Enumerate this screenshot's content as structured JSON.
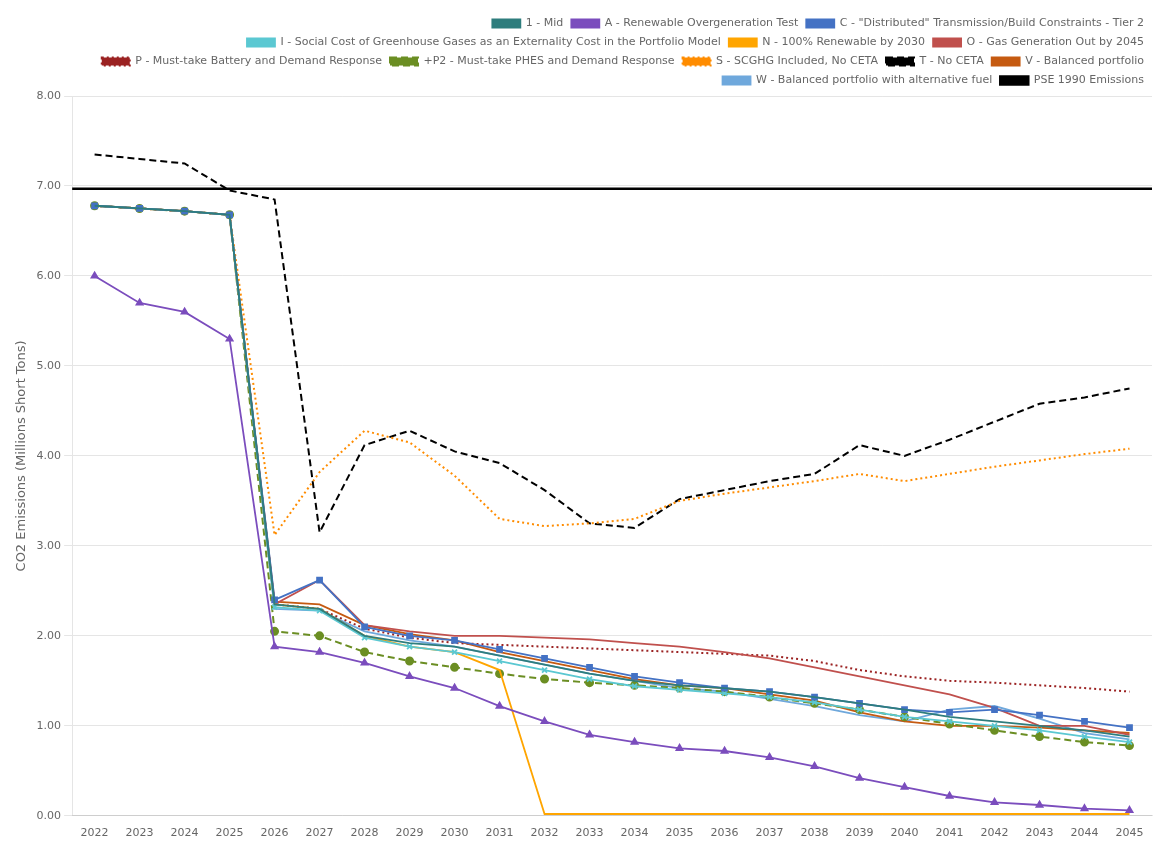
{
  "chart_data": {
    "type": "line",
    "y_label": "CO2 Emissions (Millions Short Tons)",
    "x": [
      2022,
      2023,
      2024,
      2025,
      2026,
      2027,
      2028,
      2029,
      2030,
      2031,
      2032,
      2033,
      2034,
      2035,
      2036,
      2037,
      2038,
      2039,
      2040,
      2041,
      2042,
      2043,
      2044,
      2045
    ],
    "xlim": [
      2021.5,
      2045.5
    ],
    "xticks": [
      2022,
      2023,
      2024,
      2025,
      2026,
      2027,
      2028,
      2029,
      2030,
      2031,
      2032,
      2033,
      2034,
      2035,
      2036,
      2037,
      2038,
      2039,
      2040,
      2041,
      2042,
      2043,
      2044,
      2045
    ],
    "ylim": [
      0.0,
      8.0
    ],
    "yticks": [
      {
        "value": 0,
        "label": "0.00"
      },
      {
        "value": 1,
        "label": "1.00"
      },
      {
        "value": 2,
        "label": "2.00"
      },
      {
        "value": 3,
        "label": "3.00"
      },
      {
        "value": 4,
        "label": "4.00"
      },
      {
        "value": 5,
        "label": "5.00"
      },
      {
        "value": 6,
        "label": "6.00"
      },
      {
        "value": 7,
        "label": "7.00"
      },
      {
        "value": 8,
        "label": "8.00"
      }
    ],
    "grid": "y",
    "legend": "upper right",
    "series": [
      {
        "name": "1 - Mid",
        "color": "#2e7d7d",
        "line_style": "solid",
        "marker": "none",
        "values": [
          6.78,
          6.75,
          6.72,
          6.68,
          2.35,
          2.3,
          2.0,
          1.92,
          1.88,
          1.78,
          1.68,
          1.58,
          1.5,
          1.45,
          1.42,
          1.38,
          1.32,
          1.25,
          1.18,
          1.1,
          1.05,
          1.0,
          0.95,
          0.88
        ]
      },
      {
        "name": "A - Renewable Overgeneration Test",
        "color": "#7b4dbd",
        "line_style": "solid",
        "marker": "triangle",
        "values": [
          6.0,
          5.7,
          5.6,
          5.3,
          1.88,
          1.82,
          1.7,
          1.55,
          1.42,
          1.22,
          1.05,
          0.9,
          0.82,
          0.75,
          0.72,
          0.65,
          0.55,
          0.42,
          0.32,
          0.22,
          0.15,
          0.12,
          0.08,
          0.06
        ]
      },
      {
        "name": "C - \"Distributed\" Transmission/Build Constraints - Tier 2",
        "color": "#4472c4",
        "line_style": "solid",
        "marker": "square",
        "values": [
          6.78,
          6.75,
          6.72,
          6.68,
          2.4,
          2.62,
          2.1,
          2.0,
          1.95,
          1.85,
          1.75,
          1.65,
          1.55,
          1.48,
          1.42,
          1.38,
          1.32,
          1.25,
          1.18,
          1.15,
          1.18,
          1.12,
          1.05,
          0.98
        ]
      },
      {
        "name": "I - Social Cost of Greenhouse Gases as an Externality Cost in the Portfolio Model",
        "color": "#5bc8d2",
        "line_style": "solid",
        "marker": "x",
        "values": [
          6.78,
          6.75,
          6.72,
          6.68,
          2.32,
          2.28,
          1.98,
          1.88,
          1.82,
          1.72,
          1.62,
          1.52,
          1.44,
          1.4,
          1.36,
          1.32,
          1.26,
          1.18,
          1.1,
          1.05,
          1.0,
          0.95,
          0.88,
          0.82
        ]
      },
      {
        "name": "N - 100% Renewable by 2030",
        "color": "#ffa500",
        "line_style": "solid",
        "marker": "none",
        "values": [
          6.78,
          6.75,
          6.72,
          6.68,
          2.35,
          2.3,
          2.0,
          1.88,
          1.82,
          1.62,
          0.02,
          0.02,
          0.02,
          0.02,
          0.02,
          0.02,
          0.02,
          0.02,
          0.02,
          0.02,
          0.02,
          0.02,
          0.02,
          0.02
        ]
      },
      {
        "name": "O - Gas Generation Out by 2045",
        "color": "#c0504d",
        "line_style": "solid",
        "marker": "none",
        "values": [
          6.78,
          6.75,
          6.72,
          6.68,
          2.35,
          2.62,
          2.12,
          2.05,
          2.0,
          2.0,
          1.98,
          1.96,
          1.92,
          1.88,
          1.82,
          1.75,
          1.65,
          1.55,
          1.45,
          1.35,
          1.2,
          1.0,
          1.0,
          0.9
        ]
      },
      {
        "name": "P - Must-take Battery and Demand Response",
        "color": "#9b2222",
        "line_style": "dotted",
        "marker": "none",
        "values": [
          6.78,
          6.75,
          6.72,
          6.68,
          2.35,
          2.3,
          2.08,
          1.98,
          1.92,
          1.9,
          1.88,
          1.86,
          1.84,
          1.82,
          1.8,
          1.78,
          1.72,
          1.62,
          1.55,
          1.5,
          1.48,
          1.45,
          1.42,
          1.38
        ]
      },
      {
        "name": "+P2 - Must-take PHES and Demand Response",
        "color": "#6b8e23",
        "line_style": "dashed",
        "marker": "point",
        "values": [
          6.78,
          6.75,
          6.72,
          6.68,
          2.05,
          2.0,
          1.82,
          1.72,
          1.65,
          1.58,
          1.52,
          1.48,
          1.45,
          1.42,
          1.38,
          1.32,
          1.25,
          1.18,
          1.1,
          1.02,
          0.95,
          0.88,
          0.82,
          0.78
        ]
      },
      {
        "name": "S - SCGHG Included, No CETA",
        "color": "#ff8c00",
        "line_style": "dotted",
        "marker": "none",
        "values": [
          6.78,
          6.75,
          6.72,
          6.68,
          3.12,
          3.82,
          4.28,
          4.15,
          3.78,
          3.3,
          3.22,
          3.25,
          3.3,
          3.5,
          3.58,
          3.65,
          3.72,
          3.8,
          3.72,
          3.8,
          3.88,
          3.95,
          4.02,
          4.08
        ]
      },
      {
        "name": "T - No CETA",
        "color": "#000000",
        "line_style": "dashed",
        "marker": "none",
        "values": [
          7.35,
          7.3,
          7.25,
          6.95,
          6.85,
          3.15,
          4.12,
          4.28,
          4.05,
          3.92,
          3.62,
          3.25,
          3.2,
          3.52,
          3.62,
          3.72,
          3.8,
          4.12,
          4.0,
          4.18,
          4.38,
          4.58,
          4.65,
          4.75
        ]
      },
      {
        "name": "V - Balanced portfolio",
        "color": "#c55a11",
        "line_style": "solid",
        "marker": "none",
        "values": [
          6.78,
          6.75,
          6.72,
          6.68,
          2.38,
          2.35,
          2.12,
          2.02,
          1.95,
          1.82,
          1.72,
          1.62,
          1.52,
          1.45,
          1.42,
          1.35,
          1.28,
          1.15,
          1.05,
          1.0,
          1.0,
          0.98,
          0.95,
          0.92
        ]
      },
      {
        "name": "W - Balanced portfolio with alternative fuel",
        "color": "#6fa8dc",
        "line_style": "solid",
        "marker": "none",
        "values": [
          6.78,
          6.75,
          6.72,
          6.68,
          2.3,
          2.28,
          2.05,
          1.95,
          1.88,
          1.78,
          1.68,
          1.58,
          1.5,
          1.42,
          1.38,
          1.3,
          1.22,
          1.12,
          1.05,
          1.18,
          1.22,
          1.08,
          0.92,
          0.85
        ]
      }
    ],
    "reference_line": {
      "name": "PSE 1990 Emissions",
      "value": 6.97,
      "color": "#000000",
      "line_style": "solid"
    }
  }
}
